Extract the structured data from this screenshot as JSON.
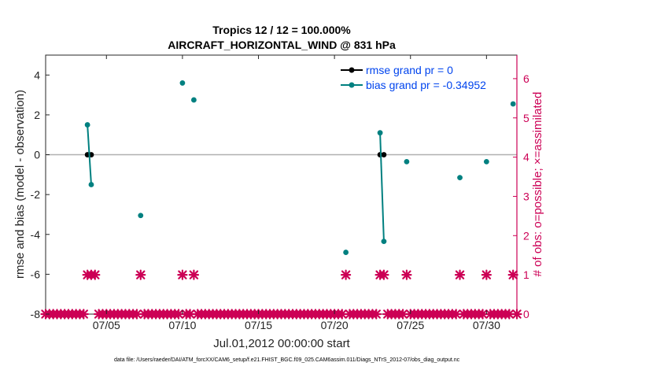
{
  "chart_data": {
    "type": "scatter",
    "title": "Tropics 12 / 12 = 100.000%",
    "subtitle": "AIRCRAFT_HORIZONTAL_WIND @ 831 hPa",
    "xlabel": "Jul.01,2012 00:00:00 start",
    "ylabel": "rmse and bias (model - observation)",
    "y2label": "# of obs: o=possible; ×=assimilated",
    "footnote": "data file: /Users/raeder/DAI/ATM_forcXX/CAM6_setup/f.e21.FHIST_BGC.f09_025.CAM6assim.011/Diags_NTrS_2012-07/obs_diag_output.nc",
    "xlim": [
      1.0,
      32.0
    ],
    "ylim": [
      -8,
      5
    ],
    "y2lim": [
      0,
      6.6
    ],
    "x_ticks": [
      {
        "v": 5,
        "label": "07/05"
      },
      {
        "v": 10,
        "label": "07/10"
      },
      {
        "v": 15,
        "label": "07/15"
      },
      {
        "v": 20,
        "label": "07/20"
      },
      {
        "v": 25,
        "label": "07/25"
      },
      {
        "v": 30,
        "label": "07/30"
      }
    ],
    "y_ticks": [
      {
        "v": -8,
        "label": "-8"
      },
      {
        "v": -6,
        "label": "-6"
      },
      {
        "v": -4,
        "label": "-4"
      },
      {
        "v": -2,
        "label": "-2"
      },
      {
        "v": 0,
        "label": "0"
      },
      {
        "v": 2,
        "label": "2"
      },
      {
        "v": 4,
        "label": "4"
      }
    ],
    "y2_ticks": [
      {
        "v": 0,
        "label": "0"
      },
      {
        "v": 1,
        "label": "1"
      },
      {
        "v": 2,
        "label": "2"
      },
      {
        "v": 3,
        "label": "3"
      },
      {
        "v": 4,
        "label": "4"
      },
      {
        "v": 5,
        "label": "5"
      },
      {
        "v": 6,
        "label": "6"
      }
    ],
    "legend": {
      "position": "top-right",
      "entries": [
        "rmse grand pr = 0",
        "bias grand pr = -0.34952"
      ]
    },
    "colors": {
      "rmse": "#000000",
      "bias": "#008080",
      "obs": "#cc0055",
      "legend_text": "#0044ee",
      "zero_line": "#b0b0b0"
    },
    "series": [
      {
        "name": "rmse grand pr = 0",
        "color": "#000000",
        "segments": [
          [
            [
              3.75,
              0
            ],
            [
              4.0,
              0
            ]
          ],
          [
            [
              23.0,
              0
            ],
            [
              23.25,
              0
            ]
          ]
        ]
      },
      {
        "name": "bias grand pr = -0.34952",
        "color": "#008080",
        "segments": [
          [
            [
              3.75,
              1.5
            ],
            [
              4.0,
              -1.5
            ]
          ],
          [
            [
              7.25,
              -3.05
            ]
          ],
          [
            [
              10.0,
              3.6
            ]
          ],
          [
            [
              10.75,
              2.75
            ]
          ],
          [
            [
              20.75,
              -4.9
            ]
          ],
          [
            [
              23.0,
              1.1
            ],
            [
              23.25,
              -4.35
            ]
          ],
          [
            [
              24.75,
              -0.35
            ]
          ],
          [
            [
              28.25,
              -1.15
            ]
          ],
          [
            [
              30.0,
              -0.35
            ]
          ],
          [
            [
              31.75,
              2.55
            ]
          ]
        ]
      }
    ],
    "obs_counts": {
      "name": "# of obs",
      "color": "#cc0055",
      "points": [
        [
          1.0,
          0
        ],
        [
          1.25,
          0
        ],
        [
          1.5,
          0
        ],
        [
          1.75,
          0
        ],
        [
          2.0,
          0
        ],
        [
          2.25,
          0
        ],
        [
          2.5,
          0
        ],
        [
          2.75,
          0
        ],
        [
          3.0,
          0
        ],
        [
          3.25,
          0
        ],
        [
          3.5,
          0
        ],
        [
          3.75,
          1
        ],
        [
          4.0,
          1
        ],
        [
          4.25,
          1
        ],
        [
          4.5,
          0
        ],
        [
          4.75,
          0
        ],
        [
          5.0,
          0
        ],
        [
          5.25,
          0
        ],
        [
          5.5,
          0
        ],
        [
          5.75,
          0
        ],
        [
          6.0,
          0
        ],
        [
          6.25,
          0
        ],
        [
          6.5,
          0
        ],
        [
          6.75,
          0
        ],
        [
          7.0,
          0
        ],
        [
          7.25,
          1
        ],
        [
          7.5,
          0
        ],
        [
          7.75,
          0
        ],
        [
          8.0,
          0
        ],
        [
          8.25,
          0
        ],
        [
          8.5,
          0
        ],
        [
          8.75,
          0
        ],
        [
          9.0,
          0
        ],
        [
          9.25,
          0
        ],
        [
          9.5,
          0
        ],
        [
          9.75,
          0
        ],
        [
          10.0,
          1
        ],
        [
          10.25,
          0
        ],
        [
          10.5,
          0
        ],
        [
          10.75,
          1
        ],
        [
          11.0,
          0
        ],
        [
          11.25,
          0
        ],
        [
          11.5,
          0
        ],
        [
          11.75,
          0
        ],
        [
          12.0,
          0
        ],
        [
          12.25,
          0
        ],
        [
          12.5,
          0
        ],
        [
          12.75,
          0
        ],
        [
          13.0,
          0
        ],
        [
          13.25,
          0
        ],
        [
          13.5,
          0
        ],
        [
          13.75,
          0
        ],
        [
          14.0,
          0
        ],
        [
          14.25,
          0
        ],
        [
          14.5,
          0
        ],
        [
          14.75,
          0
        ],
        [
          15.0,
          0
        ],
        [
          15.25,
          0
        ],
        [
          15.5,
          0
        ],
        [
          15.75,
          0
        ],
        [
          16.0,
          0
        ],
        [
          16.25,
          0
        ],
        [
          16.5,
          0
        ],
        [
          16.75,
          0
        ],
        [
          17.0,
          0
        ],
        [
          17.25,
          0
        ],
        [
          17.5,
          0
        ],
        [
          17.75,
          0
        ],
        [
          18.0,
          0
        ],
        [
          18.25,
          0
        ],
        [
          18.5,
          0
        ],
        [
          18.75,
          0
        ],
        [
          19.0,
          0
        ],
        [
          19.25,
          0
        ],
        [
          19.5,
          0
        ],
        [
          19.75,
          0
        ],
        [
          20.0,
          0
        ],
        [
          20.25,
          0
        ],
        [
          20.5,
          0
        ],
        [
          20.75,
          1
        ],
        [
          21.0,
          0
        ],
        [
          21.25,
          0
        ],
        [
          21.5,
          0
        ],
        [
          21.75,
          0
        ],
        [
          22.0,
          0
        ],
        [
          22.25,
          0
        ],
        [
          22.5,
          0
        ],
        [
          22.75,
          0
        ],
        [
          23.0,
          1
        ],
        [
          23.25,
          1
        ],
        [
          23.5,
          0
        ],
        [
          23.75,
          0
        ],
        [
          24.0,
          0
        ],
        [
          24.25,
          0
        ],
        [
          24.5,
          0
        ],
        [
          24.75,
          1
        ],
        [
          25.0,
          0
        ],
        [
          25.25,
          0
        ],
        [
          25.5,
          0
        ],
        [
          25.75,
          0
        ],
        [
          26.0,
          0
        ],
        [
          26.25,
          0
        ],
        [
          26.5,
          0
        ],
        [
          26.75,
          0
        ],
        [
          27.0,
          0
        ],
        [
          27.25,
          0
        ],
        [
          27.5,
          0
        ],
        [
          27.75,
          0
        ],
        [
          28.0,
          0
        ],
        [
          28.25,
          1
        ],
        [
          28.5,
          0
        ],
        [
          28.75,
          0
        ],
        [
          29.0,
          0
        ],
        [
          29.25,
          0
        ],
        [
          29.5,
          0
        ],
        [
          29.75,
          0
        ],
        [
          30.0,
          1
        ],
        [
          30.25,
          0
        ],
        [
          30.5,
          0
        ],
        [
          30.75,
          0
        ],
        [
          31.0,
          0
        ],
        [
          31.25,
          0
        ],
        [
          31.5,
          0
        ],
        [
          31.75,
          1
        ],
        [
          32.0,
          0
        ]
      ]
    }
  }
}
